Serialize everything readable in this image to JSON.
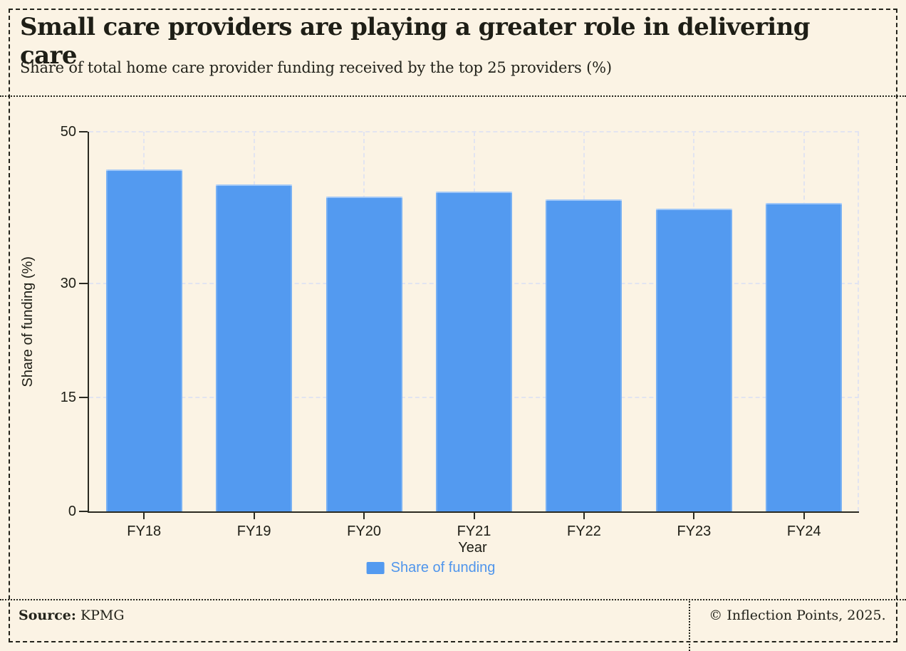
{
  "header": {
    "title": "Small care providers are playing a greater role in delivering care",
    "subtitle": "Share of total home care provider funding received by the top 25 providers (%)"
  },
  "chart_data": {
    "type": "bar",
    "categories": [
      "FY18",
      "FY19",
      "FY20",
      "FY21",
      "FY22",
      "FY23",
      "FY24"
    ],
    "series": [
      {
        "name": "Share of funding",
        "values": [
          45.0,
          43.1,
          41.5,
          42.1,
          41.1,
          39.9,
          40.6
        ]
      }
    ],
    "xlabel": "Year",
    "ylabel": "Share of funding (%)",
    "yticks": [
      0,
      15,
      30,
      50
    ],
    "ylim": [
      0,
      50
    ],
    "grid": true,
    "legend_position": "bottom-center",
    "legend_label": "Share of funding"
  },
  "colors": {
    "background": "#FBF3E4",
    "bar": "#539AF0",
    "legend_text": "#4F95EC",
    "axis": "#2A2A21",
    "gridline": "#E2E4F0",
    "ink": "#1E1E16"
  },
  "footer": {
    "source_label": "Source:",
    "source_value": "KPMG",
    "credit": "© Inflection Points, 2025."
  }
}
